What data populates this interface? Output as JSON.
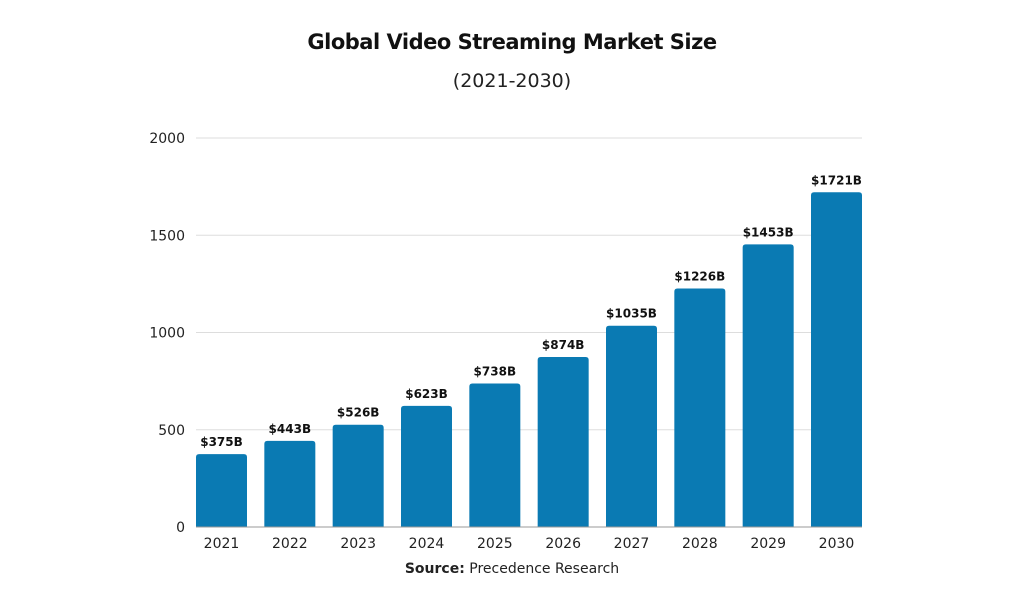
{
  "chart_data": {
    "type": "bar",
    "title": "Global Video Streaming Market Size",
    "subtitle": "(2021-2030)",
    "categories": [
      "2021",
      "2022",
      "2023",
      "2024",
      "2025",
      "2026",
      "2027",
      "2028",
      "2029",
      "2030"
    ],
    "values": [
      375,
      443,
      526,
      623,
      738,
      874,
      1035,
      1226,
      1453,
      1721
    ],
    "data_labels": [
      "$375B",
      "$443B",
      "$526B",
      "$623B",
      "$738B",
      "$874B",
      "$1035B",
      "$1226B",
      "$1453B",
      "$1721B"
    ],
    "ylim": [
      0,
      2000
    ],
    "yticks": [
      0,
      500,
      1000,
      1500,
      2000
    ],
    "grid": true,
    "bar_color": "#0a7ab3",
    "source_label": "Source:",
    "source": "Precedence Research"
  }
}
